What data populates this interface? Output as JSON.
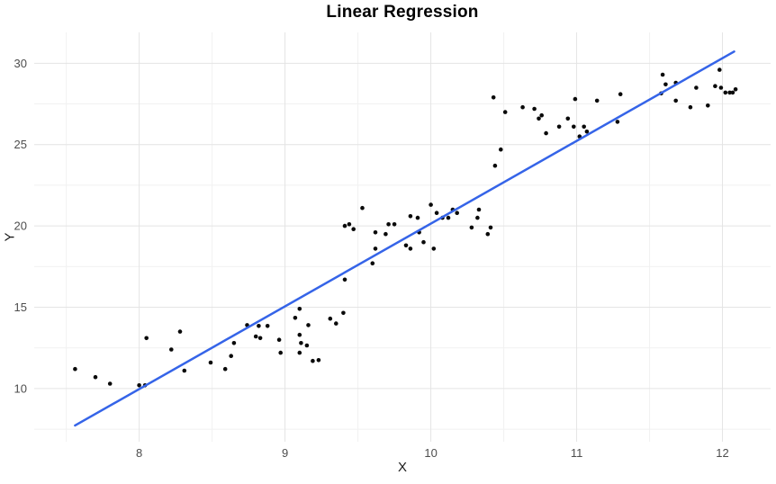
{
  "title": "Linear Regression",
  "chart_data": {
    "type": "scatter",
    "title": "Linear Regression",
    "xlabel": "X",
    "ylabel": "Y",
    "xlim": [
      7.28,
      12.33
    ],
    "ylim": [
      6.73,
      31.9
    ],
    "x_ticks": [
      8,
      9,
      10,
      11,
      12
    ],
    "y_ticks": [
      10,
      15,
      20,
      25,
      30
    ],
    "x_minor_ticks": [
      7.5,
      8.5,
      9.5,
      10.5,
      11.5
    ],
    "y_minor_ticks": [
      7.5,
      12.5,
      17.5,
      22.5,
      27.5
    ],
    "grid": "on",
    "legend": "none",
    "points": [
      [
        7.56,
        11.2
      ],
      [
        7.7,
        10.7
      ],
      [
        7.8,
        10.3
      ],
      [
        8.0,
        10.2
      ],
      [
        8.04,
        10.2
      ],
      [
        8.05,
        13.1
      ],
      [
        8.22,
        12.4
      ],
      [
        8.28,
        13.5
      ],
      [
        8.31,
        11.1
      ],
      [
        8.49,
        11.6
      ],
      [
        8.59,
        11.2
      ],
      [
        8.63,
        12.0
      ],
      [
        8.65,
        12.8
      ],
      [
        8.74,
        13.9
      ],
      [
        8.8,
        13.2
      ],
      [
        8.83,
        13.1
      ],
      [
        8.82,
        13.85
      ],
      [
        8.88,
        13.85
      ],
      [
        8.96,
        13.0
      ],
      [
        8.97,
        12.2
      ],
      [
        9.07,
        14.35
      ],
      [
        9.1,
        14.9
      ],
      [
        9.1,
        13.3
      ],
      [
        9.1,
        12.2
      ],
      [
        9.11,
        12.8
      ],
      [
        9.16,
        13.9
      ],
      [
        9.15,
        12.65
      ],
      [
        9.19,
        11.7
      ],
      [
        9.23,
        11.75
      ],
      [
        9.31,
        14.3
      ],
      [
        9.35,
        14.0
      ],
      [
        9.4,
        14.65
      ],
      [
        9.41,
        16.7
      ],
      [
        9.41,
        20.0
      ],
      [
        9.44,
        20.1
      ],
      [
        9.47,
        19.8
      ],
      [
        9.53,
        21.1
      ],
      [
        9.6,
        17.7
      ],
      [
        9.62,
        19.6
      ],
      [
        9.62,
        18.6
      ],
      [
        9.69,
        19.5
      ],
      [
        9.71,
        20.1
      ],
      [
        9.75,
        20.1
      ],
      [
        9.83,
        18.8
      ],
      [
        9.86,
        20.6
      ],
      [
        9.86,
        18.6
      ],
      [
        9.91,
        20.5
      ],
      [
        9.92,
        19.6
      ],
      [
        9.95,
        19.0
      ],
      [
        10.0,
        21.3
      ],
      [
        10.02,
        18.6
      ],
      [
        10.04,
        20.8
      ],
      [
        10.08,
        20.5
      ],
      [
        10.12,
        20.5
      ],
      [
        10.15,
        21.0
      ],
      [
        10.18,
        20.8
      ],
      [
        10.28,
        19.9
      ],
      [
        10.32,
        20.5
      ],
      [
        10.33,
        21.0
      ],
      [
        10.39,
        19.5
      ],
      [
        10.41,
        19.9
      ],
      [
        10.44,
        23.7
      ],
      [
        10.48,
        24.7
      ],
      [
        10.43,
        27.9
      ],
      [
        10.51,
        27.0
      ],
      [
        10.63,
        27.3
      ],
      [
        10.71,
        27.2
      ],
      [
        10.74,
        26.6
      ],
      [
        10.76,
        26.8
      ],
      [
        10.79,
        25.7
      ],
      [
        10.88,
        26.1
      ],
      [
        10.94,
        26.6
      ],
      [
        10.98,
        26.1
      ],
      [
        10.99,
        27.8
      ],
      [
        11.02,
        25.5
      ],
      [
        11.05,
        26.1
      ],
      [
        11.07,
        25.8
      ],
      [
        11.14,
        27.7
      ],
      [
        11.28,
        26.4
      ],
      [
        11.3,
        28.1
      ],
      [
        11.58,
        28.15
      ],
      [
        11.59,
        29.3
      ],
      [
        11.61,
        28.7
      ],
      [
        11.68,
        28.8
      ],
      [
        11.68,
        27.7
      ],
      [
        11.78,
        27.3
      ],
      [
        11.82,
        28.5
      ],
      [
        11.9,
        27.4
      ],
      [
        11.95,
        28.6
      ],
      [
        11.98,
        29.6
      ],
      [
        11.99,
        28.5
      ],
      [
        12.02,
        28.2
      ],
      [
        12.05,
        28.2
      ],
      [
        12.07,
        28.2
      ],
      [
        12.09,
        28.4
      ]
    ],
    "regression_line": {
      "x_start": 7.56,
      "y_start": 7.73,
      "x_end": 12.08,
      "y_end": 30.72,
      "slope": 5.09,
      "intercept": -30.7
    },
    "colors": {
      "point": "#0a0a0a",
      "line": "#3564e8",
      "grid_major": "#e4e4e4",
      "grid_minor": "#f1f1f1",
      "axis_text": "#4d4d4d",
      "axis_title": "#1a1a1a",
      "plot_title": "#000000",
      "background": "#ffffff"
    }
  }
}
